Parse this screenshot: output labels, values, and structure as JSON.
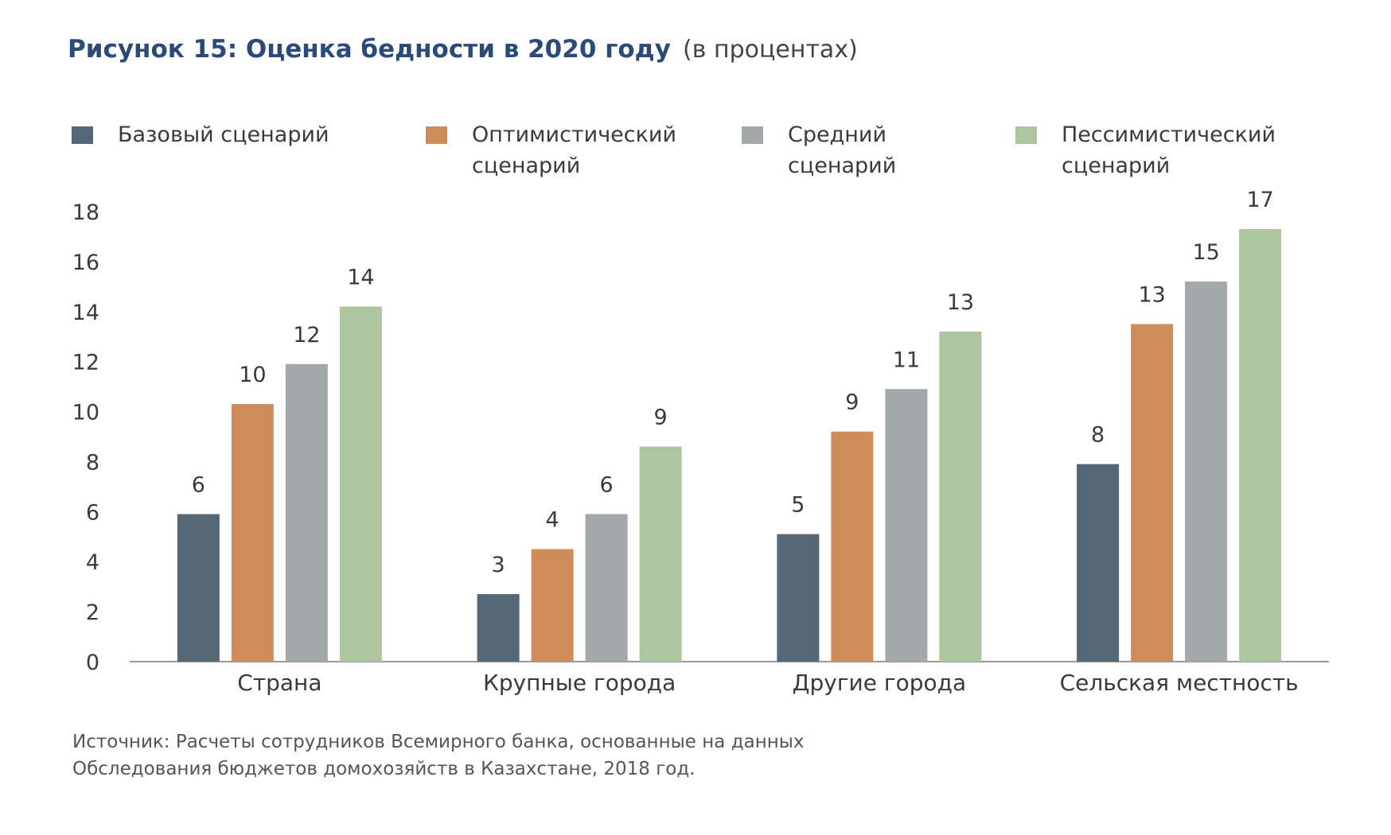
{
  "header": {
    "title": "Рисунок 15: Оценка бедности в 2020 году",
    "subtitle": "(в процентах)"
  },
  "colors": {
    "base": "#556675",
    "optimistic": "#cf8c5a",
    "medium": "#a3a8aa",
    "pessimistic": "#adc6a0",
    "axis": "#999999",
    "text": "#3a3a3a"
  },
  "legend": [
    {
      "label_line1": "Базовый сценарий",
      "label_line2": ""
    },
    {
      "label_line1": "Оптимистический",
      "label_line2": "сценарий"
    },
    {
      "label_line1": "Средний",
      "label_line2": "сценарий"
    },
    {
      "label_line1": "Пессимистический",
      "label_line2": "сценарий"
    }
  ],
  "chart_data": {
    "type": "bar",
    "title": "Рисунок 15: Оценка бедности в 2020 году",
    "subtitle": "(в процентах)",
    "categories": [
      "Страна",
      "Крупные города",
      "Другие города",
      "Сельская местность"
    ],
    "series": [
      {
        "name": "Базовый сценарий",
        "values": [
          5.9,
          2.7,
          5.1,
          7.9
        ],
        "labels": [
          "6",
          "3",
          "5",
          "8"
        ]
      },
      {
        "name": "Оптимистический сценарий",
        "values": [
          10.3,
          4.5,
          9.2,
          13.5
        ],
        "labels": [
          "10",
          "4",
          "9",
          "13"
        ]
      },
      {
        "name": "Средний сценарий",
        "values": [
          11.9,
          5.9,
          10.9,
          15.2
        ],
        "labels": [
          "12",
          "6",
          "11",
          "15"
        ]
      },
      {
        "name": "Пессимистический сценарий",
        "values": [
          14.2,
          8.6,
          13.2,
          17.3
        ],
        "labels": [
          "14",
          "9",
          "13",
          "17"
        ]
      }
    ],
    "ylim": [
      0,
      18
    ],
    "yticks": [
      0,
      2,
      4,
      6,
      8,
      10,
      12,
      14,
      16,
      18
    ],
    "grid": false,
    "legend_position": "top"
  },
  "source": {
    "line1": "Источник: Расчеты сотрудников Всемирного банка, основанные на данных",
    "line2": "Обследования бюджетов домохозяйств в Казахстане, 2018 год."
  }
}
